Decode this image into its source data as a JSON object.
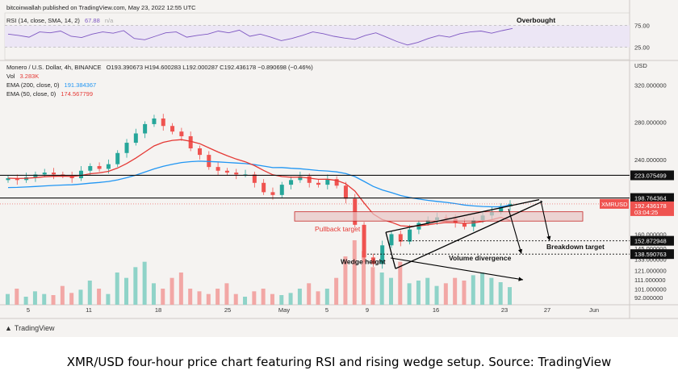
{
  "header": {
    "publisher": "bitcoinwallah published on TradingView.com, May 23, 2022 12:55 UTC",
    "rsi_label": "RSI (14, close, SMA, 14, 2)",
    "rsi_value": "67.88",
    "rsi_extra": "n/a",
    "symbol_label": "Monero / U.S. Dollar, 4h, BINANCE",
    "ohlc": "O193.390673 H194.600283 L192.000287 C192.436178 −0.890698 (−0.46%)",
    "vol_label": "Vol",
    "vol_value": "3.283K",
    "ema200_label": "EMA (200, close, 0)",
    "ema200_value": "191.384367",
    "ema50_label": "EMA (50, close, 0)",
    "ema50_value": "174.567799"
  },
  "footer": {
    "brand": "TradingView"
  },
  "caption": "XMR/USD four-hour price chart featuring RSI and rising wedge setup. Source: TradingView",
  "colors": {
    "up": "#26a69a",
    "down": "#ef5350",
    "ema200": "#2196f3",
    "ema50": "#e53935",
    "rsi": "#7e57c2",
    "band": "#e8c4c4"
  },
  "chart_data": [
    {
      "type": "line",
      "panel": "rsi",
      "series": [
        {
          "name": "RSI (14, close, SMA, 14, 2)",
          "values": [
            55,
            52,
            48,
            60,
            58,
            62,
            50,
            47,
            55,
            60,
            57,
            63,
            45,
            42,
            50,
            58,
            60,
            48,
            52,
            55,
            62,
            58,
            64,
            50,
            55,
            48,
            40,
            45,
            52,
            60,
            56,
            50,
            46,
            43,
            52,
            58,
            48,
            38,
            30,
            36,
            45,
            52,
            48,
            56,
            60,
            62,
            57,
            63,
            67.88
          ]
        }
      ],
      "y_ticks": [
        "75.00",
        "25.00"
      ],
      "annotations": [
        "Overbought"
      ]
    },
    {
      "type": "candlestick",
      "panel": "price",
      "title": "Monero / U.S. Dollar, 4h, BINANCE",
      "ylabel": "USD",
      "y_ticks": [
        "320.000000",
        "280.000000",
        "240.000000",
        "200.000000",
        "160.000000",
        "145.000000",
        "133.000000",
        "121.000000",
        "111.000000",
        "101.000000",
        "92.000000"
      ],
      "x_ticks": [
        "5",
        "11",
        "18",
        "25",
        "May",
        "5",
        "9",
        "16",
        "23",
        "27",
        "Jun"
      ],
      "close": [
        220,
        218,
        221,
        224,
        226,
        224,
        223,
        220,
        228,
        233,
        230,
        235,
        247,
        258,
        268,
        278,
        284,
        276,
        270,
        265,
        252,
        245,
        232,
        228,
        226,
        224,
        224,
        215,
        205,
        202,
        213,
        218,
        222,
        215,
        213,
        219,
        212,
        198,
        170,
        135,
        128,
        148,
        160,
        152,
        165,
        172,
        175,
        178,
        177,
        172,
        168,
        175,
        180,
        184,
        190,
        192.44
      ],
      "levels": [
        {
          "label": "223.075499",
          "style": "solid"
        },
        {
          "label": "198.764364",
          "style": "solid"
        },
        {
          "label": "152.872948",
          "style": "dotted"
        },
        {
          "label": "138.590763",
          "style": "dotted"
        }
      ],
      "tags": [
        {
          "label": "XMRUSD",
          "value": "192.436178",
          "sub": "03:04:25"
        }
      ],
      "ema200_last": 191.384367,
      "ema50_last": 174.567799,
      "annotations": [
        "Pullback target",
        "Breakdown target",
        "Wedge height",
        "Volume divergence"
      ]
    },
    {
      "type": "bar",
      "panel": "volume",
      "series": [
        {
          "name": "Vol",
          "values": [
            2,
            3,
            1.5,
            2.5,
            2,
            1.8,
            3.5,
            2.2,
            2.8,
            4.5,
            3,
            2,
            6,
            5,
            7,
            8,
            4,
            3,
            5,
            6,
            3,
            2.5,
            2,
            3,
            4,
            2,
            1.5,
            2.5,
            3,
            2,
            1.8,
            2.2,
            3,
            4,
            2.5,
            3,
            5,
            9,
            12,
            10,
            7,
            6,
            5,
            8,
            4,
            4.5,
            5,
            3.5,
            4,
            5,
            4.5,
            5.5,
            6,
            5,
            4.2,
            3.283
          ]
        }
      ]
    }
  ]
}
